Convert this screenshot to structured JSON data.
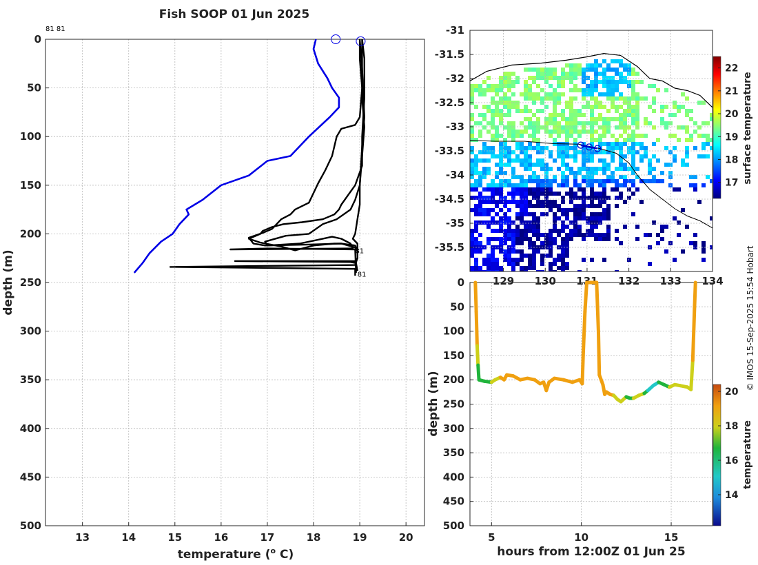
{
  "title": "Fish SOOP 01 Jun 2025",
  "credit": "© IMOS 15-Sep-2025 15:54 Hobart",
  "colors": {
    "blue_profile": "#0000e6",
    "black_profile": "#000000"
  },
  "chart_data": [
    {
      "id": "profile",
      "type": "line",
      "xlabel": "temperature (",
      "xlabel_sup": "o",
      "xlabel_tail": " C)",
      "ylabel": "depth (m)",
      "xlim": [
        12.2,
        20.4
      ],
      "ylim": [
        0,
        500
      ],
      "xticks": [
        13,
        14,
        15,
        16,
        17,
        18,
        19,
        20
      ],
      "yticks": [
        0,
        50,
        100,
        150,
        200,
        250,
        300,
        350,
        400,
        450,
        500
      ],
      "top_labels": [
        "81 81"
      ],
      "series": [
        {
          "name": "blue",
          "color": "#0000e6",
          "points": [
            [
              18.05,
              0
            ],
            [
              18.0,
              10
            ],
            [
              18.1,
              25
            ],
            [
              18.3,
              40
            ],
            [
              18.4,
              50
            ],
            [
              18.55,
              60
            ],
            [
              18.55,
              70
            ],
            [
              18.35,
              80
            ],
            [
              17.9,
              100
            ],
            [
              17.5,
              120
            ],
            [
              17.0,
              125
            ],
            [
              16.6,
              140
            ],
            [
              16.0,
              150
            ],
            [
              15.6,
              165
            ],
            [
              15.25,
              175
            ],
            [
              15.3,
              180
            ],
            [
              15.1,
              190
            ],
            [
              14.95,
              200
            ],
            [
              14.7,
              208
            ],
            [
              14.45,
              220
            ],
            [
              14.3,
              230
            ],
            [
              14.12,
              240
            ]
          ]
        },
        {
          "name": "black-a",
          "color": "#000000",
          "points": [
            [
              19.05,
              0
            ],
            [
              19.1,
              20
            ],
            [
              19.1,
              60
            ],
            [
              19.05,
              100
            ],
            [
              19.05,
              130
            ],
            [
              18.9,
              150
            ],
            [
              18.75,
              160
            ],
            [
              18.6,
              170
            ],
            [
              18.55,
              175
            ],
            [
              18.45,
              180
            ],
            [
              18.2,
              185
            ],
            [
              17.75,
              188
            ],
            [
              17.35,
              190
            ],
            [
              17.1,
              193
            ],
            [
              16.9,
              197
            ],
            [
              16.85,
              200
            ],
            [
              16.6,
              205
            ],
            [
              16.85,
              209
            ],
            [
              17.3,
              213
            ],
            [
              17.6,
              217
            ],
            [
              18.0,
              212
            ],
            [
              18.45,
              210
            ],
            [
              18.6,
              210
            ],
            [
              18.9,
              214
            ],
            [
              18.95,
              218
            ],
            [
              18.95,
              225
            ],
            [
              18.9,
              232
            ],
            [
              14.9,
              234
            ],
            [
              18.9,
              236
            ],
            [
              18.9,
              243
            ]
          ]
        },
        {
          "name": "black-b",
          "color": "#000000",
          "points": [
            [
              19.0,
              0
            ],
            [
              19.05,
              30
            ],
            [
              19.1,
              80
            ],
            [
              19.05,
              110
            ],
            [
              19.0,
              150
            ],
            [
              18.9,
              165
            ],
            [
              18.8,
              175
            ],
            [
              18.5,
              185
            ],
            [
              18.2,
              190
            ],
            [
              17.9,
              200
            ],
            [
              17.4,
              202
            ],
            [
              16.95,
              208
            ],
            [
              17.0,
              212
            ],
            [
              17.7,
              210
            ],
            [
              18.1,
              206
            ],
            [
              18.4,
              203
            ],
            [
              18.6,
              205
            ],
            [
              18.8,
              210
            ],
            [
              18.85,
              215
            ],
            [
              16.2,
              216
            ],
            [
              17.0,
              215
            ],
            [
              18.9,
              216
            ],
            [
              18.92,
              240
            ]
          ]
        },
        {
          "name": "black-c",
          "color": "#000000",
          "points": [
            [
              19.05,
              0
            ],
            [
              19.05,
              20
            ],
            [
              19.05,
              60
            ],
            [
              19.1,
              90
            ],
            [
              19.05,
              120
            ],
            [
              19.0,
              150
            ],
            [
              19.0,
              170
            ],
            [
              18.95,
              185
            ],
            [
              18.9,
              200
            ],
            [
              18.85,
              205
            ],
            [
              18.95,
              210
            ],
            [
              18.95,
              225
            ],
            [
              18.9,
              228
            ],
            [
              16.3,
              228
            ],
            [
              18.8,
              229
            ],
            [
              18.92,
              230
            ],
            [
              18.95,
              238
            ]
          ]
        },
        {
          "name": "black-d",
          "color": "#000000",
          "points": [
            [
              19.0,
              0
            ],
            [
              19.0,
              20
            ],
            [
              19.05,
              50
            ],
            [
              19.0,
              80
            ],
            [
              18.9,
              88
            ],
            [
              18.6,
              92
            ],
            [
              18.5,
              100
            ],
            [
              18.4,
              120
            ],
            [
              18.25,
              135
            ],
            [
              18.1,
              148
            ],
            [
              18.0,
              158
            ],
            [
              17.9,
              168
            ],
            [
              17.6,
              175
            ],
            [
              17.5,
              180
            ],
            [
              17.3,
              185
            ],
            [
              17.2,
              190
            ],
            [
              17.1,
              195
            ],
            [
              16.9,
              199
            ],
            [
              16.6,
              204
            ],
            [
              16.7,
              210
            ],
            [
              16.95,
              212
            ],
            [
              17.9,
              211
            ],
            [
              18.6,
              210
            ],
            [
              18.9,
              212
            ],
            [
              18.95,
              218
            ]
          ]
        }
      ],
      "markers": [
        [
          18.48,
          0
        ],
        [
          19.02,
          2
        ]
      ],
      "annotations": [
        {
          "text": "81",
          "x": 18.9,
          "y": 220
        },
        {
          "text": "81",
          "x": 18.95,
          "y": 244
        }
      ]
    },
    {
      "id": "map",
      "type": "heatmap",
      "colorbar_label": "surface temperature",
      "colorbar_ticks": [
        17,
        18,
        19,
        20,
        21,
        22
      ],
      "clim": [
        16.3,
        22.5
      ],
      "xlim": [
        128.2,
        134.0
      ],
      "ylim": [
        -36.0,
        -31.0
      ],
      "yticks": [
        -31,
        -31.5,
        -32,
        -32.5,
        -33,
        -33.5,
        -34,
        -34.5,
        -35,
        -35.5
      ],
      "xticks": [
        129,
        130,
        131,
        132,
        133,
        134
      ],
      "xtick_labels": [
        "129",
        "130",
        "131",
        "132",
        "133",
        "134"
      ],
      "track": [
        [
          130.85,
          -33.38
        ],
        [
          131.05,
          -33.42
        ],
        [
          131.25,
          -33.45
        ]
      ],
      "coast": [
        [
          128.2,
          -32.05
        ],
        [
          128.6,
          -31.85
        ],
        [
          129.2,
          -31.72
        ],
        [
          129.9,
          -31.68
        ],
        [
          130.5,
          -31.62
        ],
        [
          131.0,
          -31.55
        ],
        [
          131.4,
          -31.48
        ],
        [
          131.8,
          -31.52
        ],
        [
          132.2,
          -31.75
        ],
        [
          132.5,
          -32.0
        ],
        [
          132.8,
          -32.05
        ],
        [
          133.1,
          -32.2
        ],
        [
          133.4,
          -32.25
        ],
        [
          133.7,
          -32.35
        ],
        [
          134.0,
          -32.6
        ]
      ],
      "shelf": [
        [
          128.2,
          -33.28
        ],
        [
          128.8,
          -33.3
        ],
        [
          129.5,
          -33.3
        ],
        [
          130.2,
          -33.35
        ],
        [
          130.8,
          -33.36
        ],
        [
          131.3,
          -33.45
        ],
        [
          131.7,
          -33.55
        ],
        [
          132.0,
          -33.75
        ],
        [
          132.2,
          -34.0
        ],
        [
          132.5,
          -34.3
        ],
        [
          132.8,
          -34.5
        ],
        [
          133.1,
          -34.7
        ],
        [
          133.4,
          -34.85
        ],
        [
          133.7,
          -34.95
        ],
        [
          134.0,
          -35.1
        ]
      ]
    },
    {
      "id": "timeseries",
      "type": "scatter",
      "xlabel": "hours from 12:00Z 01 Jun 25",
      "ylabel": "depth (m)",
      "xlim": [
        3.8,
        17.3
      ],
      "ylim": [
        0,
        500
      ],
      "xticks": [
        5,
        10,
        15
      ],
      "yticks": [
        0,
        50,
        100,
        150,
        200,
        250,
        300,
        350,
        400,
        450,
        500
      ],
      "colorbar_label": "temperature",
      "colorbar_ticks": [
        14,
        16,
        18,
        20
      ],
      "clim": [
        12.2,
        20.4
      ],
      "track": [
        [
          4.1,
          0,
          19.1
        ],
        [
          4.15,
          60,
          19.0
        ],
        [
          4.2,
          130,
          18.8
        ],
        [
          4.25,
          170,
          17.5
        ],
        [
          4.3,
          200,
          16.8
        ],
        [
          4.6,
          203,
          16.9
        ],
        [
          5.0,
          205,
          17.2
        ],
        [
          5.2,
          200,
          18.0
        ],
        [
          5.5,
          195,
          18.6
        ],
        [
          5.7,
          200,
          18.7
        ],
        [
          5.85,
          190,
          18.8
        ],
        [
          6.2,
          192,
          18.8
        ],
        [
          6.6,
          200,
          18.8
        ],
        [
          7.0,
          197,
          18.9
        ],
        [
          7.4,
          200,
          18.9
        ],
        [
          7.7,
          208,
          18.9
        ],
        [
          7.9,
          205,
          18.9
        ],
        [
          8.05,
          222,
          18.9
        ],
        [
          8.2,
          205,
          18.9
        ],
        [
          8.5,
          197,
          18.9
        ],
        [
          9.0,
          200,
          18.9
        ],
        [
          9.5,
          205,
          18.9
        ],
        [
          9.9,
          200,
          18.9
        ],
        [
          10.05,
          208,
          18.9
        ],
        [
          10.1,
          150,
          19.0
        ],
        [
          10.2,
          60,
          19.05
        ],
        [
          10.3,
          0,
          19.1
        ],
        [
          10.85,
          0,
          19.1
        ],
        [
          10.95,
          100,
          19.05
        ],
        [
          11.0,
          190,
          18.9
        ],
        [
          11.2,
          210,
          18.9
        ],
        [
          11.3,
          230,
          18.8
        ],
        [
          11.4,
          225,
          18.8
        ],
        [
          11.6,
          230,
          18.7
        ],
        [
          11.8,
          232,
          18.6
        ],
        [
          12.0,
          240,
          18.5
        ],
        [
          12.2,
          245,
          18.4
        ],
        [
          12.5,
          235,
          18.2
        ],
        [
          12.7,
          238,
          16.2
        ],
        [
          12.9,
          238,
          18.3
        ],
        [
          13.2,
          232,
          18.0
        ],
        [
          13.5,
          228,
          17.4
        ],
        [
          13.7,
          222,
          16.3
        ],
        [
          14.0,
          212,
          16.5
        ],
        [
          14.3,
          205,
          16.8
        ],
        [
          14.6,
          210,
          17.2
        ],
        [
          14.9,
          215,
          17.6
        ],
        [
          15.2,
          210,
          17.8
        ],
        [
          15.5,
          212,
          17.9
        ],
        [
          15.9,
          215,
          18.0
        ],
        [
          16.1,
          220,
          17.8
        ],
        [
          16.2,
          160,
          18.4
        ],
        [
          16.3,
          50,
          18.9
        ],
        [
          16.35,
          0,
          19.0
        ]
      ]
    }
  ]
}
